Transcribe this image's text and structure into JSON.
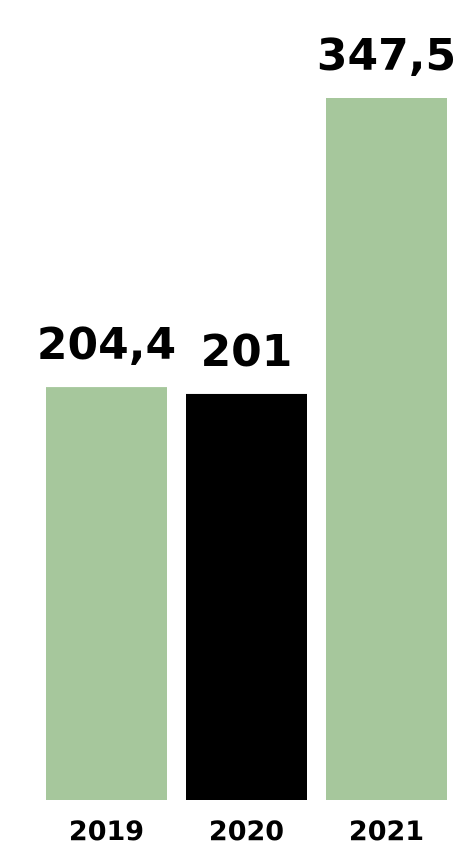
{
  "chart_data": {
    "type": "bar",
    "categories": [
      "2019",
      "2020",
      "2021"
    ],
    "values": [
      204.4,
      201,
      347.5
    ],
    "data_labels": [
      "204,4",
      "201",
      "347,5"
    ],
    "colors": [
      "#a6c79c",
      "#000000",
      "#a6c79c"
    ],
    "title": "",
    "xlabel": "",
    "ylabel": "",
    "grid": false,
    "legend": "none"
  }
}
